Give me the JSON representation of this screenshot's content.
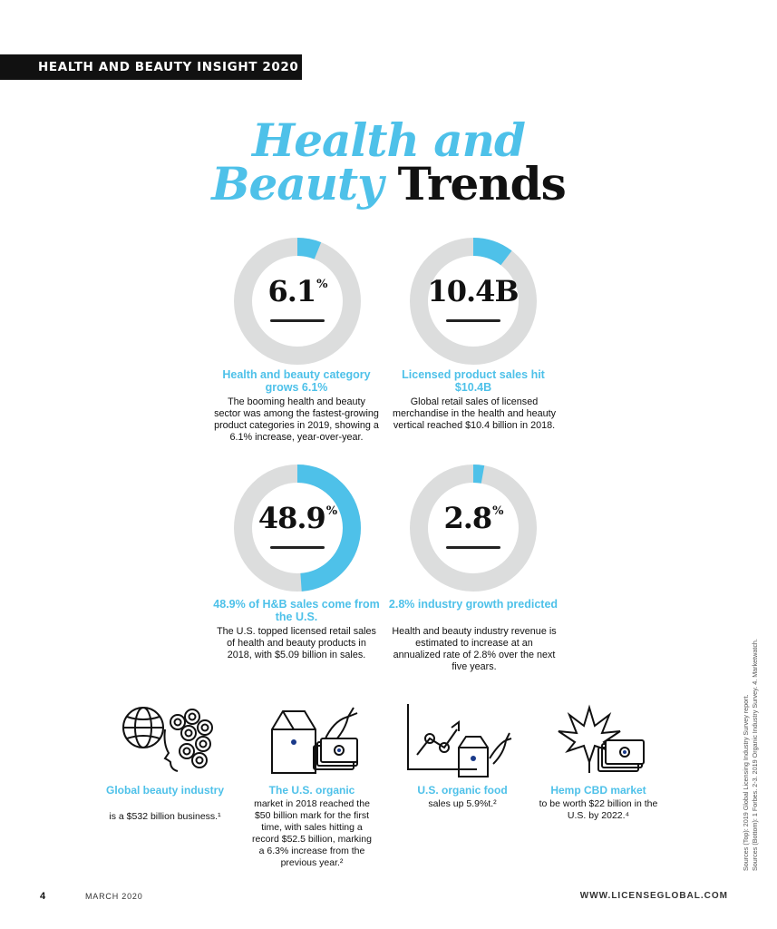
{
  "banner": "HEALTH AND BEAUTY INSIGHT 2020",
  "title": {
    "line1": "Health and",
    "line2_highlight": "Beauty",
    "line2_dark": "Trends"
  },
  "donuts": [
    {
      "value": "6.1",
      "suffix": "%",
      "fraction": 0.061,
      "title": "Health and beauty category grows 6.1%",
      "body": "The booming health and beauty sector was among the fastest-growing product categories in 2019, showing a 6.1% increase, year-over-year."
    },
    {
      "value": "10.4B",
      "suffix": "",
      "fraction": 0.104,
      "title": "Licensed product sales hit $10.4B",
      "body": "Global retail sales of licensed merchandise in the health and heauty vertical reached $10.4 billion in 2018."
    },
    {
      "value": "48.9",
      "suffix": "%",
      "fraction": 0.489,
      "title": "48.9% of H&B sales come from the U.S.",
      "body": "The U.S. topped licensed retail sales of health and beauty products in 2018, with $5.09 billion in sales."
    },
    {
      "value": "2.8",
      "suffix": "%",
      "fraction": 0.028,
      "title": "2.8% industry growth predicted",
      "body": "Health and beauty industry revenue is estimated to increase at an annualized rate of 2.8% over the next five years."
    }
  ],
  "icons": [
    {
      "title": "Global beauty industry",
      "body": "is a $532 billion business.¹",
      "icon": "globe-face-icon"
    },
    {
      "title": "The U.S. organic",
      "body": "market in 2018 reached the $50 billion mark for the first time, with sales hitting a record $52.5 billion, marking a 6.3% increase from the previous year.²",
      "icon": "milk-carton-carrot-cash-icon"
    },
    {
      "title": "U.S. organic food",
      "body": "sales up 5.9%t.²",
      "icon": "growth-chart-icon"
    },
    {
      "title": "Hemp CBD market",
      "body": "to be worth $22 billion in the U.S. by 2022.⁴",
      "icon": "hemp-leaf-cash-icon"
    }
  ],
  "sources": {
    "line1": "Sources (Top): 2019 Global Licensing Industry Survey report.",
    "line2": "Sources (Bottom): 1 Forbes. 2-3. 2019 Organic Industry Survey. 4. Marketwatch."
  },
  "footer": {
    "page": "4",
    "date": "MARCH 2020",
    "website": "WWW.LICENSEGLOBAL.COM"
  },
  "colors": {
    "accent": "#4ec1e9",
    "track": "#dcdddd",
    "ink": "#111111"
  }
}
